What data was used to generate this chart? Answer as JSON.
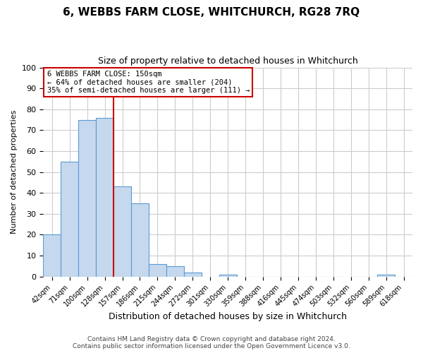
{
  "title": "6, WEBBS FARM CLOSE, WHITCHURCH, RG28 7RQ",
  "subtitle": "Size of property relative to detached houses in Whitchurch",
  "xlabel": "Distribution of detached houses by size in Whitchurch",
  "ylabel": "Number of detached properties",
  "bin_labels": [
    "42sqm",
    "71sqm",
    "100sqm",
    "128sqm",
    "157sqm",
    "186sqm",
    "215sqm",
    "244sqm",
    "272sqm",
    "301sqm",
    "330sqm",
    "359sqm",
    "388sqm",
    "416sqm",
    "445sqm",
    "474sqm",
    "503sqm",
    "532sqm",
    "560sqm",
    "589sqm",
    "618sqm"
  ],
  "bar_values": [
    20,
    55,
    75,
    76,
    43,
    35,
    6,
    5,
    2,
    0,
    1,
    0,
    0,
    0,
    0,
    0,
    0,
    0,
    0,
    1,
    0
  ],
  "bar_color": "#c5d8ed",
  "bar_edge_color": "#5b9bd5",
  "vline_color": "#cc0000",
  "vline_x": 3.5,
  "annotation_title": "6 WEBBS FARM CLOSE: 150sqm",
  "annotation_line1": "← 64% of detached houses are smaller (204)",
  "annotation_line2": "35% of semi-detached houses are larger (111) →",
  "annotation_box_color": "#ffffff",
  "annotation_box_edge": "#cc0000",
  "ylim": [
    0,
    100
  ],
  "grid_color": "#cccccc",
  "footer1": "Contains HM Land Registry data © Crown copyright and database right 2024.",
  "footer2": "Contains public sector information licensed under the Open Government Licence v3.0."
}
